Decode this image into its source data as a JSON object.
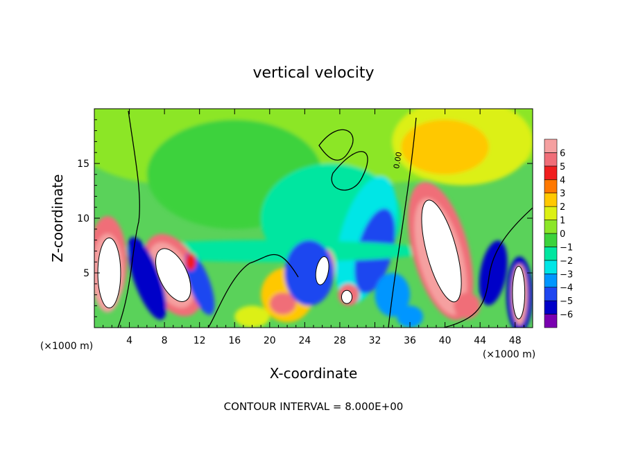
{
  "chart_data": {
    "type": "heatmap",
    "title": "vertical velocity",
    "xlabel": "X-coordinate",
    "ylabel": "Z-coordinate",
    "x_unit_label": "(×1000 m)",
    "footer": "CONTOUR INTERVAL = 8.000E+00",
    "contour_label": "0.00",
    "xlim": [
      0,
      50
    ],
    "ylim": [
      0,
      20
    ],
    "x_ticks": [
      4,
      8,
      12,
      16,
      20,
      24,
      28,
      32,
      36,
      40,
      44,
      48
    ],
    "y_ticks": [
      5,
      10,
      15
    ],
    "colorbar": {
      "vmin": -6,
      "vmax": 6,
      "ticks": [
        6,
        5,
        4,
        3,
        2,
        1,
        0,
        -1,
        -2,
        -3,
        -4,
        -5,
        -6
      ],
      "colors": [
        "#7a00b0",
        "#0000c8",
        "#1e46f0",
        "#0096ff",
        "#00e6e6",
        "#00e6a0",
        "#3cd23c",
        "#8ce628",
        "#dcf014",
        "#ffc800",
        "#ff7800",
        "#f01e1e",
        "#f06e78",
        "#f5a0a0"
      ]
    },
    "features": [
      {
        "kind": "updraft",
        "x": 2.0,
        "z": 4.5,
        "max_value": 6
      },
      {
        "kind": "updraft",
        "x": 9.0,
        "z": 4.0,
        "max_value": 6
      },
      {
        "kind": "updraft",
        "x": 39.5,
        "z": 6.5,
        "max_value": 6
      },
      {
        "kind": "updraft",
        "x": 48.5,
        "z": 3.0,
        "max_value": 6
      },
      {
        "kind": "updraft",
        "x": 25.5,
        "z": 5.0,
        "max_value": 6
      },
      {
        "kind": "downdraft",
        "x": 6.0,
        "z": 5.0,
        "min_value": -5
      },
      {
        "kind": "downdraft",
        "x": 31.0,
        "z": 6.0,
        "min_value": -6
      },
      {
        "kind": "downdraft",
        "x": 46.5,
        "z": 3.5,
        "min_value": -5
      }
    ]
  }
}
